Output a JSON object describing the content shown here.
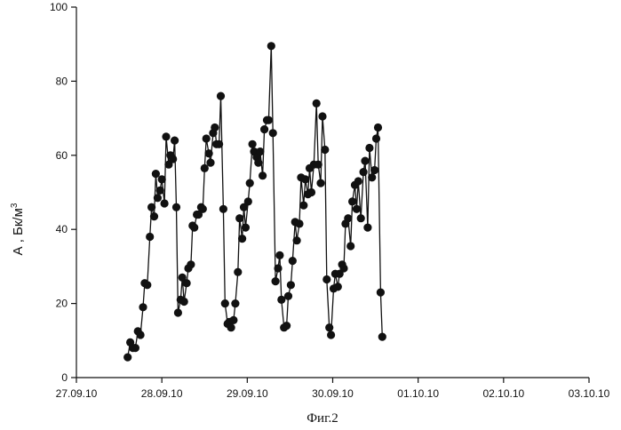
{
  "chart_data": {
    "type": "line",
    "caption": "Фиг.2",
    "ylabel_main": "А , Бк/м",
    "ylabel_sup": "3",
    "xlabel": "",
    "x_range": [
      "27.09.10",
      "03.10.10"
    ],
    "ylim": [
      0,
      100
    ],
    "x_tick_labels": [
      "27.09.10",
      "28.09.10",
      "29.09.10",
      "30.09.10",
      "01.10.10",
      "02.10.10",
      "03.10.10"
    ],
    "y_tick_labels": [
      "0",
      "20",
      "40",
      "60",
      "80",
      "100"
    ],
    "grid": false,
    "legend": "none",
    "marker": "filled-circle",
    "series": [
      {
        "points": [
          [
            0.6,
            5.5
          ],
          [
            0.63,
            9.5
          ],
          [
            0.66,
            8
          ],
          [
            0.69,
            8
          ],
          [
            0.72,
            12.5
          ],
          [
            0.75,
            11.5
          ],
          [
            0.78,
            19
          ],
          [
            0.8,
            25.5
          ],
          [
            0.83,
            25
          ],
          [
            0.86,
            38
          ],
          [
            0.88,
            46
          ],
          [
            0.91,
            43.5
          ],
          [
            0.93,
            55
          ],
          [
            0.95,
            48.5
          ],
          [
            0.98,
            50.5
          ],
          [
            1.0,
            53.5
          ],
          [
            1.03,
            47
          ],
          [
            1.05,
            65
          ],
          [
            1.08,
            57.5
          ],
          [
            1.1,
            60
          ],
          [
            1.13,
            59
          ],
          [
            1.15,
            64
          ],
          [
            1.17,
            46
          ],
          [
            1.19,
            17.5
          ],
          [
            1.22,
            21
          ],
          [
            1.24,
            27
          ],
          [
            1.26,
            20.5
          ],
          [
            1.29,
            25.5
          ],
          [
            1.31,
            29.5
          ],
          [
            1.34,
            30.5
          ],
          [
            1.36,
            41
          ],
          [
            1.38,
            40.5
          ],
          [
            1.41,
            44
          ],
          [
            1.43,
            44
          ],
          [
            1.46,
            46
          ],
          [
            1.48,
            45.5
          ],
          [
            1.5,
            56.5
          ],
          [
            1.52,
            64.5
          ],
          [
            1.55,
            60.5
          ],
          [
            1.57,
            58
          ],
          [
            1.6,
            66
          ],
          [
            1.62,
            67.5
          ],
          [
            1.64,
            63
          ],
          [
            1.67,
            63
          ],
          [
            1.69,
            76
          ],
          [
            1.72,
            45.5
          ],
          [
            1.74,
            20
          ],
          [
            1.77,
            14.5
          ],
          [
            1.79,
            15
          ],
          [
            1.81,
            13.5
          ],
          [
            1.84,
            15.5
          ],
          [
            1.86,
            20
          ],
          [
            1.89,
            28.5
          ],
          [
            1.91,
            43
          ],
          [
            1.94,
            37.5
          ],
          [
            1.96,
            46
          ],
          [
            1.98,
            40.5
          ],
          [
            2.01,
            47.5
          ],
          [
            2.03,
            52.5
          ],
          [
            2.06,
            63
          ],
          [
            2.08,
            61
          ],
          [
            2.11,
            59.5
          ],
          [
            2.13,
            58
          ],
          [
            2.15,
            61
          ],
          [
            2.18,
            54.5
          ],
          [
            2.2,
            67
          ],
          [
            2.23,
            69.5
          ],
          [
            2.25,
            69.5
          ],
          [
            2.28,
            89.5
          ],
          [
            2.3,
            66
          ],
          [
            2.33,
            26
          ],
          [
            2.36,
            29.5
          ],
          [
            2.38,
            33
          ],
          [
            2.4,
            21
          ],
          [
            2.43,
            13.5
          ],
          [
            2.46,
            14
          ],
          [
            2.48,
            22
          ],
          [
            2.51,
            25
          ],
          [
            2.53,
            31.5
          ],
          [
            2.56,
            42
          ],
          [
            2.58,
            37
          ],
          [
            2.61,
            41.5
          ],
          [
            2.63,
            54
          ],
          [
            2.66,
            46.5
          ],
          [
            2.68,
            53.5
          ],
          [
            2.71,
            49.5
          ],
          [
            2.73,
            56.5
          ],
          [
            2.75,
            50
          ],
          [
            2.78,
            57.5
          ],
          [
            2.81,
            74
          ],
          [
            2.83,
            57.5
          ],
          [
            2.86,
            52.5
          ],
          [
            2.88,
            70.5
          ],
          [
            2.91,
            61.5
          ],
          [
            2.93,
            26.5
          ],
          [
            2.96,
            13.5
          ],
          [
            2.98,
            11.5
          ],
          [
            3.01,
            24
          ],
          [
            3.03,
            28
          ],
          [
            3.06,
            24.5
          ],
          [
            3.08,
            28
          ],
          [
            3.11,
            30.5
          ],
          [
            3.13,
            29.5
          ],
          [
            3.15,
            41.5
          ],
          [
            3.18,
            43
          ],
          [
            3.21,
            35.5
          ],
          [
            3.23,
            47.5
          ],
          [
            3.26,
            52
          ],
          [
            3.28,
            45.5
          ],
          [
            3.3,
            53
          ],
          [
            3.33,
            43
          ],
          [
            3.36,
            55.5
          ],
          [
            3.38,
            58.5
          ],
          [
            3.41,
            40.5
          ],
          [
            3.43,
            62
          ],
          [
            3.46,
            54
          ],
          [
            3.49,
            56
          ],
          [
            3.51,
            64.5
          ],
          [
            3.53,
            67.5
          ],
          [
            3.56,
            23
          ],
          [
            3.58,
            11
          ]
        ]
      }
    ],
    "colors": {
      "line": "#111111",
      "marker": "#111111",
      "axis": "#111111"
    }
  }
}
